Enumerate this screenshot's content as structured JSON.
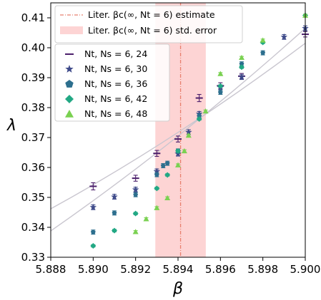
{
  "chart_data": {
    "type": "scatter",
    "xlabel": "β",
    "ylabel": "λ",
    "xlim": [
      5.888,
      5.9
    ],
    "ylim": [
      0.33,
      0.415
    ],
    "xticks": [
      "5.888",
      "5.890",
      "5.892",
      "5.894",
      "5.896",
      "5.898",
      "5.900"
    ],
    "xtick_values": [
      5.888,
      5.89,
      5.892,
      5.894,
      5.896,
      5.898,
      5.9
    ],
    "yticks": [
      "0.33",
      "0.34",
      "0.35",
      "0.36",
      "0.37",
      "0.38",
      "0.39",
      "0.40",
      "0.41"
    ],
    "ytick_values": [
      0.33,
      0.34,
      0.35,
      0.36,
      0.37,
      0.38,
      0.39,
      0.4,
      0.41
    ],
    "grid": false,
    "reference": {
      "estimate_label": "Liter. βc(∞, Nt = 6) estimate",
      "error_label": "Liter. βc(∞, Nt = 6) std. error",
      "estimate": 5.89412,
      "error_band": [
        5.89293,
        5.89531
      ],
      "line_color": "#e8806f",
      "band_color": "#fdd4d4"
    },
    "series": [
      {
        "name": "Nt, Ns = 6, 24",
        "marker": "hline",
        "color": "#4b1e6b",
        "x": [
          5.89,
          5.892,
          5.893,
          5.894,
          5.895,
          5.896,
          5.897,
          5.9
        ],
        "y": [
          0.3537,
          0.3564,
          0.3647,
          0.3695,
          0.3832,
          0.3873,
          0.3905,
          0.4045
        ],
        "err": [
          0.0012,
          0.001,
          0.001,
          0.001,
          0.0012,
          0.001,
          0.0009,
          0.0009
        ],
        "fit": [
          [
            5.888,
            0.3462
          ],
          [
            5.894,
            0.3717
          ],
          [
            5.9,
            0.4015
          ]
        ]
      },
      {
        "name": "Nt, Ns = 6, 30",
        "marker": "star",
        "color": "#3e4a8a",
        "x": [
          5.89,
          5.891,
          5.892,
          5.893,
          5.894,
          5.8945,
          5.895,
          5.896,
          5.897,
          5.899,
          5.9
        ],
        "y": [
          0.3467,
          0.3502,
          0.3526,
          0.3587,
          0.3646,
          0.3718,
          0.3779,
          0.3867,
          0.3902,
          0.4036,
          0.4065
        ],
        "err": [
          0.0008,
          0.0008,
          0.0008,
          0.0008,
          0.0008,
          0.0008,
          0.0008,
          0.0008,
          0.0008,
          0.0008,
          0.0008
        ]
      },
      {
        "name": "Nt, Ns = 6, 36",
        "marker": "pentagon",
        "color": "#2d6f8e",
        "x": [
          5.89,
          5.891,
          5.892,
          5.893,
          5.8933,
          5.8935,
          5.894,
          5.895,
          5.896,
          5.897,
          5.898
        ],
        "y": [
          0.3384,
          0.3448,
          0.3509,
          0.3576,
          0.3606,
          0.3614,
          0.3655,
          0.3773,
          0.3851,
          0.3946,
          0.3983
        ],
        "err": [
          0.0007,
          0.0007,
          0.0007,
          0.0007,
          0.0007,
          0.0007,
          0.0007,
          0.0007,
          0.0007,
          0.0007,
          0.0007
        ],
        "fit": [
          [
            5.888,
            0.3388
          ],
          [
            5.894,
            0.3705
          ],
          [
            5.9,
            0.4065
          ]
        ]
      },
      {
        "name": "Nt, Ns = 6, 42",
        "marker": "diamond",
        "color": "#22a884",
        "x": [
          5.89,
          5.891,
          5.892,
          5.893,
          5.8935,
          5.894,
          5.895,
          5.896,
          5.897,
          5.898,
          5.9
        ],
        "y": [
          0.3338,
          0.3389,
          0.3446,
          0.353,
          0.3575,
          0.3655,
          0.3762,
          0.3872,
          0.3935,
          0.4018,
          0.4108
        ],
        "err": [
          0.0004,
          0.0004,
          0.0004,
          0.0004,
          0.0004,
          0.0004,
          0.0004,
          0.0004,
          0.0004,
          0.0004,
          0.0004
        ]
      },
      {
        "name": "Nt, Ns = 6, 48",
        "marker": "triangle",
        "color": "#7ad151",
        "x": [
          5.892,
          5.8925,
          5.893,
          5.8935,
          5.894,
          5.8943,
          5.8945,
          5.8953,
          5.896,
          5.897,
          5.898,
          5.9
        ],
        "y": [
          0.3385,
          0.3428,
          0.3465,
          0.3498,
          0.3608,
          0.3655,
          0.3707,
          0.3788,
          0.3913,
          0.3967,
          0.4025,
          0.4108
        ],
        "err": [
          0.0004,
          0.0004,
          0.0004,
          0.0004,
          0.0004,
          0.0004,
          0.0004,
          0.0004,
          0.0004,
          0.0004,
          0.0004,
          0.0004
        ]
      }
    ],
    "legend_position": "top"
  }
}
